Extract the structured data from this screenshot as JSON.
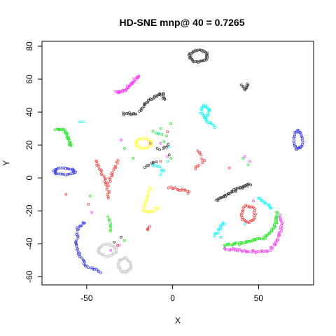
{
  "chart_data": {
    "type": "scatter",
    "title": "HD-SNE mnp@ 40 = 0.7265",
    "xlabel": "X",
    "ylabel": "Y",
    "xlim": [
      -76,
      82
    ],
    "ylim": [
      -65,
      83
    ],
    "xticks": [
      -50,
      0,
      50
    ],
    "xtick_labels": [
      "-50",
      "0",
      "50"
    ],
    "yticks": [
      -60,
      -40,
      -20,
      0,
      20,
      40,
      60,
      80
    ],
    "ytick_labels": [
      "-60",
      "-40",
      "-20",
      "0",
      "20",
      "40",
      "60",
      "80"
    ],
    "grid": false,
    "legend": "none",
    "marker": "open-circle",
    "clusters": [
      {
        "color": "#404040",
        "kind": "ring",
        "cx": 15,
        "cy": 74,
        "rx": 5,
        "ry": 3.5,
        "n": 40
      },
      {
        "color": "#404040",
        "kind": "path",
        "pts": [
          [
            40,
            56
          ],
          [
            42,
            54
          ],
          [
            44,
            57
          ]
        ],
        "n": 10
      },
      {
        "color": "#404040",
        "kind": "path",
        "pts": [
          [
            -19,
            41
          ],
          [
            -15,
            46
          ],
          [
            -9,
            50
          ],
          [
            -5,
            51
          ],
          [
            -5,
            47
          ]
        ],
        "n": 30
      },
      {
        "color": "#404040",
        "kind": "path",
        "pts": [
          [
            -29,
            39
          ],
          [
            -21,
            39
          ]
        ],
        "n": 12
      },
      {
        "color": "#404040",
        "kind": "path",
        "pts": [
          [
            -7,
            17
          ],
          [
            -2,
            20
          ]
        ],
        "n": 6
      },
      {
        "color": "#404040",
        "kind": "path",
        "pts": [
          [
            -16,
            7
          ],
          [
            -10,
            10
          ]
        ],
        "n": 8
      },
      {
        "color": "#404040",
        "kind": "path",
        "pts": [
          [
            26,
            -14
          ],
          [
            30,
            -11
          ],
          [
            35,
            -8
          ],
          [
            40,
            -6
          ],
          [
            45,
            -4
          ]
        ],
        "n": 40
      },
      {
        "color": "#ff44ff",
        "kind": "path",
        "pts": [
          [
            -33,
            52
          ],
          [
            -28,
            53
          ],
          [
            -24,
            57
          ],
          [
            -20,
            62
          ]
        ],
        "n": 40
      },
      {
        "color": "#ff44ff",
        "kind": "path",
        "pts": [
          [
            30,
            -43
          ],
          [
            40,
            -44
          ],
          [
            50,
            -45
          ],
          [
            56,
            -44
          ],
          [
            60,
            -40
          ],
          [
            63,
            -32
          ],
          [
            63,
            -23
          ]
        ],
        "n": 60
      },
      {
        "color": "#22ee22",
        "kind": "path",
        "pts": [
          [
            -68,
            30
          ],
          [
            -63,
            29
          ],
          [
            -61,
            25
          ],
          [
            -59,
            19
          ]
        ],
        "n": 30
      },
      {
        "color": "#22ee22",
        "kind": "path",
        "pts": [
          [
            -37,
            -24
          ],
          [
            -36,
            -32
          ]
        ],
        "n": 8
      },
      {
        "color": "#22ee22",
        "kind": "path",
        "pts": [
          [
            30,
            -41
          ],
          [
            38,
            -40
          ],
          [
            46,
            -38
          ],
          [
            52,
            -37
          ],
          [
            57,
            -33
          ],
          [
            60,
            -28
          ],
          [
            61,
            -21
          ]
        ],
        "n": 60
      },
      {
        "color": "#22ee22",
        "kind": "path",
        "pts": [
          [
            -12,
            28
          ],
          [
            -4,
            26
          ]
        ],
        "n": 5
      },
      {
        "color": "#00ffff",
        "kind": "path",
        "pts": [
          [
            24,
            31
          ],
          [
            18,
            37
          ],
          [
            16,
            42
          ],
          [
            19,
            44
          ],
          [
            22,
            41
          ],
          [
            20,
            37
          ]
        ],
        "n": 30
      },
      {
        "color": "#00ffff",
        "kind": "path",
        "pts": [
          [
            50,
            -12
          ],
          [
            55,
            -16
          ],
          [
            58,
            -19
          ]
        ],
        "n": 12
      },
      {
        "color": "#00ffff",
        "kind": "path",
        "pts": [
          [
            25,
            -35
          ],
          [
            28,
            -30
          ],
          [
            30,
            -27
          ]
        ],
        "n": 12
      },
      {
        "color": "#00ffff",
        "kind": "path",
        "pts": [
          [
            -12,
            8
          ],
          [
            -5,
            5
          ]
        ],
        "n": 6
      },
      {
        "color": "#4444ee",
        "kind": "ring",
        "cx": -63,
        "cy": 4,
        "rx": 6,
        "ry": 2,
        "n": 35
      },
      {
        "color": "#4444ee",
        "kind": "ring",
        "cx": 73,
        "cy": 23,
        "rx": 2.5,
        "ry": 5.5,
        "n": 30
      },
      {
        "color": "#4444ee",
        "kind": "path",
        "pts": [
          [
            -51,
            -27
          ],
          [
            -55,
            -30
          ],
          [
            -56,
            -40
          ],
          [
            -54,
            -48
          ],
          [
            -50,
            -54
          ],
          [
            -42,
            -57
          ]
        ],
        "n": 45
      },
      {
        "color": "#ffff44",
        "kind": "ring",
        "cx": -17,
        "cy": 21,
        "rx": 4.5,
        "ry": 3,
        "n": 30
      },
      {
        "color": "#ffff44",
        "kind": "path",
        "pts": [
          [
            -13,
            -6
          ],
          [
            -15,
            -12
          ],
          [
            -17,
            -20
          ],
          [
            -13,
            -21
          ],
          [
            -8,
            -18
          ]
        ],
        "n": 30
      },
      {
        "color": "#ff4444",
        "kind": "path",
        "pts": [
          [
            -45,
            10
          ],
          [
            -41,
            3
          ],
          [
            -38,
            -5
          ],
          [
            -37,
            -12
          ]
        ],
        "n": 25
      },
      {
        "color": "#ff4444",
        "kind": "path",
        "pts": [
          [
            -32,
            10
          ],
          [
            -35,
            3
          ],
          [
            -37,
            -3
          ]
        ],
        "n": 15
      },
      {
        "color": "#ff4444",
        "kind": "path",
        "pts": [
          [
            -2,
            -6
          ],
          [
            4,
            -7
          ],
          [
            10,
            -9
          ]
        ],
        "n": 15
      },
      {
        "color": "#ff4444",
        "kind": "path",
        "pts": [
          [
            15,
            17
          ],
          [
            18,
            10
          ],
          [
            13,
            6
          ]
        ],
        "n": 12
      },
      {
        "color": "#ff4444",
        "kind": "ring",
        "cx": 44,
        "cy": -22,
        "rx": 4,
        "ry": 5,
        "n": 30
      },
      {
        "color": "#ff4444",
        "kind": "path",
        "pts": [
          [
            -15,
            -32
          ],
          [
            -13,
            -30
          ]
        ],
        "n": 4
      },
      {
        "color": "#cccccc",
        "kind": "ring",
        "cx": -38,
        "cy": -44,
        "rx": 5,
        "ry": 3.5,
        "n": 35
      },
      {
        "color": "#cccccc",
        "kind": "ring",
        "cx": -28,
        "cy": -53,
        "rx": 3.5,
        "ry": 4.5,
        "n": 35
      }
    ],
    "scattered": [
      {
        "color": "#22ee22",
        "pts": [
          [
            -7,
            30
          ],
          [
            -1,
            33
          ],
          [
            -28,
            18
          ],
          [
            -5,
            22
          ],
          [
            41,
            12
          ],
          [
            44,
            8
          ],
          [
            -1,
            12
          ],
          [
            -48,
            -11
          ],
          [
            -23,
            12
          ],
          [
            -28,
            -38
          ]
        ]
      },
      {
        "color": "#00ffff",
        "pts": [
          [
            -54,
            34
          ],
          [
            -52,
            34
          ],
          [
            -8,
            27
          ],
          [
            -3,
            10
          ],
          [
            -6,
            4
          ],
          [
            -7,
            2
          ],
          [
            28,
            -36
          ],
          [
            -2,
            19
          ],
          [
            42,
            -28
          ]
        ]
      },
      {
        "color": "#ff44ff",
        "pts": [
          [
            42,
            13
          ],
          [
            45,
            10
          ],
          [
            -3,
            13
          ],
          [
            -30,
            23
          ],
          [
            -47,
            -21
          ],
          [
            -36,
            -44
          ],
          [
            -31,
            -41
          ],
          [
            47,
            -14
          ],
          [
            -7,
            21
          ]
        ]
      },
      {
        "color": "#ff4444",
        "pts": [
          [
            -62,
            -10
          ],
          [
            -49,
            -16
          ],
          [
            -32,
            -41
          ],
          [
            33,
            6
          ],
          [
            -13,
            21
          ],
          [
            -3,
            28
          ],
          [
            -7,
            10
          ]
        ]
      },
      {
        "color": "#404040",
        "pts": [
          [
            -34,
            -39
          ],
          [
            -30,
            -36
          ],
          [
            -9,
            18
          ],
          [
            -2,
            14
          ]
        ]
      }
    ]
  }
}
